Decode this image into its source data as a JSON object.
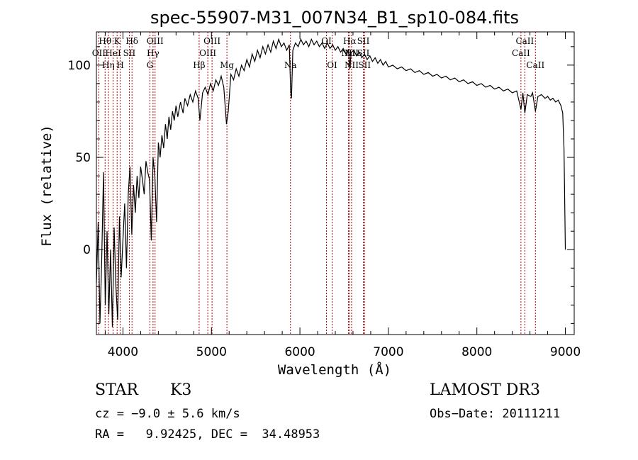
{
  "chart_data": {
    "type": "line",
    "title": "spec-55907-M31_007N34_B1_sp10-084.fits",
    "xlabel": "Wavelength (Å)",
    "ylabel": "Flux (relative)",
    "xlim": [
      3700,
      9100
    ],
    "ylim": [
      -46,
      118
    ],
    "x_ticks": [
      4000,
      5000,
      6000,
      7000,
      8000,
      9000
    ],
    "y_ticks": [
      0,
      50,
      100
    ],
    "series": [
      {
        "name": "flux",
        "points": [
          [
            3700,
            -18
          ],
          [
            3720,
            15
          ],
          [
            3740,
            -40
          ],
          [
            3760,
            -5
          ],
          [
            3780,
            42
          ],
          [
            3800,
            -30
          ],
          [
            3820,
            10
          ],
          [
            3840,
            -35
          ],
          [
            3860,
            0
          ],
          [
            3880,
            -42
          ],
          [
            3900,
            12
          ],
          [
            3920,
            -20
          ],
          [
            3940,
            -38
          ],
          [
            3960,
            18
          ],
          [
            3980,
            -15
          ],
          [
            4000,
            5
          ],
          [
            4020,
            25
          ],
          [
            4040,
            -10
          ],
          [
            4060,
            30
          ],
          [
            4080,
            45
          ],
          [
            4100,
            8
          ],
          [
            4120,
            35
          ],
          [
            4140,
            20
          ],
          [
            4160,
            40
          ],
          [
            4180,
            28
          ],
          [
            4200,
            45
          ],
          [
            4220,
            38
          ],
          [
            4240,
            30
          ],
          [
            4260,
            48
          ],
          [
            4280,
            42
          ],
          [
            4300,
            38
          ],
          [
            4320,
            5
          ],
          [
            4340,
            50
          ],
          [
            4360,
            40
          ],
          [
            4380,
            15
          ],
          [
            4400,
            58
          ],
          [
            4420,
            50
          ],
          [
            4440,
            62
          ],
          [
            4460,
            55
          ],
          [
            4480,
            68
          ],
          [
            4500,
            60
          ],
          [
            4520,
            72
          ],
          [
            4540,
            65
          ],
          [
            4560,
            75
          ],
          [
            4580,
            70
          ],
          [
            4600,
            78
          ],
          [
            4620,
            72
          ],
          [
            4650,
            80
          ],
          [
            4680,
            74
          ],
          [
            4700,
            82
          ],
          [
            4730,
            78
          ],
          [
            4760,
            84
          ],
          [
            4790,
            80
          ],
          [
            4820,
            86
          ],
          [
            4850,
            82
          ],
          [
            4870,
            70
          ],
          [
            4900,
            85
          ],
          [
            4930,
            88
          ],
          [
            4960,
            84
          ],
          [
            4990,
            90
          ],
          [
            5020,
            86
          ],
          [
            5050,
            92
          ],
          [
            5080,
            89
          ],
          [
            5110,
            94
          ],
          [
            5140,
            88
          ],
          [
            5170,
            68
          ],
          [
            5190,
            75
          ],
          [
            5220,
            95
          ],
          [
            5250,
            92
          ],
          [
            5280,
            98
          ],
          [
            5310,
            94
          ],
          [
            5340,
            100
          ],
          [
            5370,
            97
          ],
          [
            5400,
            103
          ],
          [
            5430,
            99
          ],
          [
            5460,
            106
          ],
          [
            5490,
            102
          ],
          [
            5520,
            108
          ],
          [
            5550,
            104
          ],
          [
            5580,
            110
          ],
          [
            5610,
            106
          ],
          [
            5640,
            111
          ],
          [
            5670,
            107
          ],
          [
            5700,
            113
          ],
          [
            5730,
            109
          ],
          [
            5760,
            114
          ],
          [
            5790,
            110
          ],
          [
            5820,
            112
          ],
          [
            5850,
            108
          ],
          [
            5880,
            111
          ],
          [
            5895,
            86
          ],
          [
            5905,
            82
          ],
          [
            5920,
            108
          ],
          [
            5950,
            112
          ],
          [
            5980,
            110
          ],
          [
            6010,
            114
          ],
          [
            6040,
            111
          ],
          [
            6070,
            113
          ],
          [
            6100,
            110
          ],
          [
            6130,
            114
          ],
          [
            6160,
            111
          ],
          [
            6190,
            113
          ],
          [
            6220,
            110
          ],
          [
            6250,
            112
          ],
          [
            6280,
            109
          ],
          [
            6310,
            112
          ],
          [
            6340,
            109
          ],
          [
            6370,
            111
          ],
          [
            6400,
            108
          ],
          [
            6430,
            110
          ],
          [
            6460,
            107
          ],
          [
            6490,
            109
          ],
          [
            6520,
            106
          ],
          [
            6550,
            108
          ],
          [
            6563,
            98
          ],
          [
            6580,
            107
          ],
          [
            6610,
            108
          ],
          [
            6640,
            105
          ],
          [
            6670,
            107
          ],
          [
            6700,
            104
          ],
          [
            6730,
            106
          ],
          [
            6760,
            103
          ],
          [
            6790,
            105
          ],
          [
            6820,
            102
          ],
          [
            6850,
            104
          ],
          [
            6880,
            101
          ],
          [
            6910,
            103
          ],
          [
            6940,
            100
          ],
          [
            6970,
            102
          ],
          [
            7000,
            99
          ],
          [
            7050,
            100
          ],
          [
            7100,
            98
          ],
          [
            7150,
            99
          ],
          [
            7200,
            97
          ],
          [
            7250,
            98
          ],
          [
            7300,
            96
          ],
          [
            7350,
            97
          ],
          [
            7400,
            95
          ],
          [
            7450,
            96
          ],
          [
            7500,
            94
          ],
          [
            7550,
            95
          ],
          [
            7600,
            93
          ],
          [
            7650,
            94
          ],
          [
            7700,
            92
          ],
          [
            7750,
            93
          ],
          [
            7800,
            91
          ],
          [
            7850,
            92
          ],
          [
            7900,
            90
          ],
          [
            7950,
            91
          ],
          [
            8000,
            89
          ],
          [
            8050,
            90
          ],
          [
            8100,
            88
          ],
          [
            8150,
            89
          ],
          [
            8200,
            87
          ],
          [
            8250,
            88
          ],
          [
            8300,
            86
          ],
          [
            8350,
            87
          ],
          [
            8400,
            85
          ],
          [
            8450,
            86
          ],
          [
            8498,
            76
          ],
          [
            8520,
            85
          ],
          [
            8542,
            74
          ],
          [
            8570,
            84
          ],
          [
            8610,
            83
          ],
          [
            8630,
            85
          ],
          [
            8662,
            75
          ],
          [
            8690,
            83
          ],
          [
            8730,
            84
          ],
          [
            8770,
            82
          ],
          [
            8800,
            83
          ],
          [
            8830,
            81
          ],
          [
            8860,
            82
          ],
          [
            8890,
            80
          ],
          [
            8920,
            81
          ],
          [
            8950,
            78
          ],
          [
            8970,
            74
          ],
          [
            8985,
            55
          ],
          [
            8995,
            18
          ],
          [
            9000,
            0
          ]
        ]
      }
    ],
    "line_markers": [
      {
        "name": "Hθ",
        "wavelength": 3798,
        "row": 1
      },
      {
        "name": "OII",
        "wavelength": 3727,
        "row": 2
      },
      {
        "name": "Hη",
        "wavelength": 3835,
        "row": 3
      },
      {
        "name": "HeI",
        "wavelength": 3889,
        "row": 2
      },
      {
        "name": "K",
        "wavelength": 3934,
        "row": 1
      },
      {
        "name": "SII",
        "wavelength": 4072,
        "row": 2
      },
      {
        "name": "H",
        "wavelength": 3969,
        "row": 3
      },
      {
        "name": "Hδ",
        "wavelength": 4102,
        "row": 1
      },
      {
        "name": "OIII",
        "wavelength": 4363,
        "row": 1
      },
      {
        "name": "Hγ",
        "wavelength": 4340,
        "row": 2
      },
      {
        "name": "G",
        "wavelength": 4305,
        "row": 3
      },
      {
        "name": "OIII",
        "wavelength": 5007,
        "row": 1
      },
      {
        "name": "OIII",
        "wavelength": 4959,
        "row": 2
      },
      {
        "name": "Hβ",
        "wavelength": 4861,
        "row": 3
      },
      {
        "name": "Mg",
        "wavelength": 5175,
        "row": 3
      },
      {
        "name": "Na",
        "wavelength": 5893,
        "row": 3
      },
      {
        "name": "OI",
        "wavelength": 6300,
        "row": 1
      },
      {
        "name": "NII",
        "wavelength": 6548,
        "row": 2
      },
      {
        "name": "OI",
        "wavelength": 6364,
        "row": 3
      },
      {
        "name": "Hα",
        "wavelength": 6563,
        "row": 1
      },
      {
        "name": "NII",
        "wavelength": 6584,
        "row": 2
      },
      {
        "name": "NII",
        "wavelength": 6584,
        "row": 3
      },
      {
        "name": "SII",
        "wavelength": 6717,
        "row": 1
      },
      {
        "name": "SII",
        "wavelength": 6717,
        "row": 2
      },
      {
        "name": "SII",
        "wavelength": 6731,
        "row": 3
      },
      {
        "name": "CaII",
        "wavelength": 8542,
        "row": 1
      },
      {
        "name": "CaII",
        "wavelength": 8498,
        "row": 2
      },
      {
        "name": "CaII",
        "wavelength": 8662,
        "row": 3
      }
    ]
  },
  "info": {
    "class": "STAR",
    "subclass": "K3",
    "cz": "cz = −9.0 ± 5.6 km/s",
    "coords": "RA =   9.92425, DEC =  34.48953",
    "survey": "LAMOST DR3",
    "obs_date": "Obs−Date: 20111211"
  }
}
